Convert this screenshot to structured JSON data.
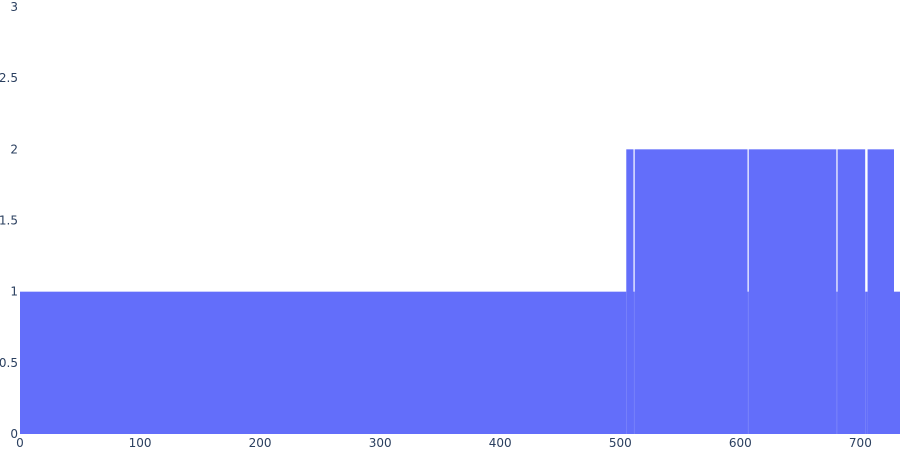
{
  "chart_data": {
    "type": "bar",
    "color": "#636efa",
    "background": "#ffffff",
    "grid": false,
    "xlim": [
      0,
      733
    ],
    "ylim": [
      0,
      3
    ],
    "xticks": [
      {
        "value": 0,
        "label": "0"
      },
      {
        "value": 100,
        "label": "100"
      },
      {
        "value": 200,
        "label": "200"
      },
      {
        "value": 300,
        "label": "300"
      },
      {
        "value": 400,
        "label": "400"
      },
      {
        "value": 500,
        "label": "500"
      },
      {
        "value": 600,
        "label": "600"
      },
      {
        "value": 700,
        "label": "700"
      }
    ],
    "yticks": [
      {
        "value": 0,
        "label": "0"
      },
      {
        "value": 0.5,
        "label": "0.5"
      },
      {
        "value": 1,
        "label": "1"
      },
      {
        "value": 1.5,
        "label": "1.5"
      },
      {
        "value": 2,
        "label": "2"
      },
      {
        "value": 2.5,
        "label": "2.5"
      },
      {
        "value": 3,
        "label": "3"
      }
    ],
    "segments": [
      {
        "x_start": 0,
        "x_end": 505,
        "value": 1
      },
      {
        "x_start": 505,
        "x_end": 511,
        "value": 2
      },
      {
        "x_start": 511,
        "x_end": 512,
        "value": 1
      },
      {
        "x_start": 512,
        "x_end": 606,
        "value": 2
      },
      {
        "x_start": 606,
        "x_end": 607,
        "value": 1
      },
      {
        "x_start": 607,
        "x_end": 680,
        "value": 2
      },
      {
        "x_start": 680,
        "x_end": 681,
        "value": 1
      },
      {
        "x_start": 681,
        "x_end": 704,
        "value": 2
      },
      {
        "x_start": 704,
        "x_end": 706,
        "value": 1
      },
      {
        "x_start": 706,
        "x_end": 728,
        "value": 2
      },
      {
        "x_start": 728,
        "x_end": 733,
        "value": 1
      }
    ]
  }
}
